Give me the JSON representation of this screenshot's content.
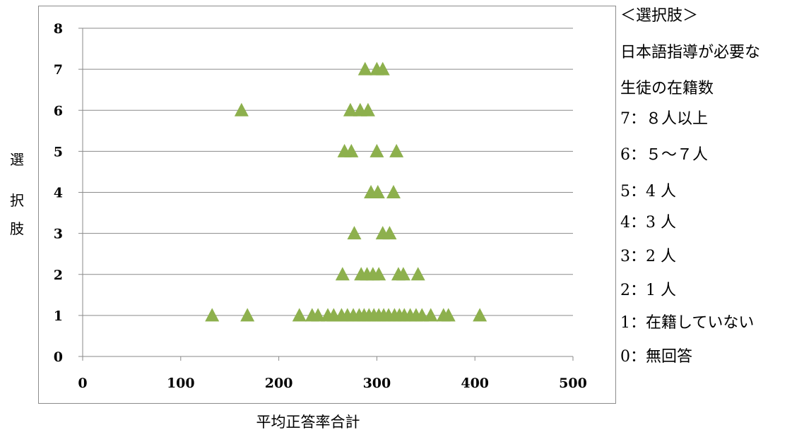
{
  "chart_data": {
    "type": "scatter",
    "title": "",
    "xlabel": "平均正答率合計",
    "ylabel": "選択肢",
    "xlim": [
      0,
      500
    ],
    "ylim": [
      0,
      8
    ],
    "xticks": [
      "0",
      "100",
      "200",
      "300",
      "400",
      "500"
    ],
    "yticks": [
      "0",
      "1",
      "2",
      "3",
      "4",
      "5",
      "6",
      "7",
      "8"
    ],
    "grid": "horizontal",
    "marker": "triangle",
    "color": "#8db04d",
    "points": [
      {
        "x": 132,
        "y": 1
      },
      {
        "x": 168,
        "y": 1
      },
      {
        "x": 221,
        "y": 1
      },
      {
        "x": 234,
        "y": 1
      },
      {
        "x": 240,
        "y": 1
      },
      {
        "x": 250,
        "y": 1
      },
      {
        "x": 256,
        "y": 1
      },
      {
        "x": 264,
        "y": 1
      },
      {
        "x": 270,
        "y": 1
      },
      {
        "x": 276,
        "y": 1
      },
      {
        "x": 282,
        "y": 1
      },
      {
        "x": 287,
        "y": 1
      },
      {
        "x": 292,
        "y": 1
      },
      {
        "x": 297,
        "y": 1
      },
      {
        "x": 302,
        "y": 1
      },
      {
        "x": 307,
        "y": 1
      },
      {
        "x": 312,
        "y": 1
      },
      {
        "x": 318,
        "y": 1
      },
      {
        "x": 323,
        "y": 1
      },
      {
        "x": 328,
        "y": 1
      },
      {
        "x": 334,
        "y": 1
      },
      {
        "x": 340,
        "y": 1
      },
      {
        "x": 346,
        "y": 1
      },
      {
        "x": 355,
        "y": 1
      },
      {
        "x": 368,
        "y": 1
      },
      {
        "x": 373,
        "y": 1
      },
      {
        "x": 405,
        "y": 1
      },
      {
        "x": 265,
        "y": 2
      },
      {
        "x": 284,
        "y": 2
      },
      {
        "x": 290,
        "y": 2
      },
      {
        "x": 296,
        "y": 2
      },
      {
        "x": 302,
        "y": 2
      },
      {
        "x": 322,
        "y": 2
      },
      {
        "x": 327,
        "y": 2
      },
      {
        "x": 342,
        "y": 2
      },
      {
        "x": 277,
        "y": 3
      },
      {
        "x": 306,
        "y": 3
      },
      {
        "x": 313,
        "y": 3
      },
      {
        "x": 294,
        "y": 4
      },
      {
        "x": 301,
        "y": 4
      },
      {
        "x": 317,
        "y": 4
      },
      {
        "x": 267,
        "y": 5
      },
      {
        "x": 274,
        "y": 5
      },
      {
        "x": 300,
        "y": 5
      },
      {
        "x": 320,
        "y": 5
      },
      {
        "x": 162,
        "y": 6
      },
      {
        "x": 273,
        "y": 6
      },
      {
        "x": 283,
        "y": 6
      },
      {
        "x": 291,
        "y": 6
      },
      {
        "x": 288,
        "y": 7
      },
      {
        "x": 300,
        "y": 7
      },
      {
        "x": 306,
        "y": 7
      }
    ]
  },
  "legend": {
    "lines": [
      "＜選択肢＞",
      "日本語指導が必要な",
      "生徒の在籍数",
      "7：８人以上",
      "6：５～７人",
      "5：4 人",
      "4：3 人",
      "3：2 人",
      "2：1 人",
      "1：在籍していない",
      "0：無回答"
    ]
  }
}
